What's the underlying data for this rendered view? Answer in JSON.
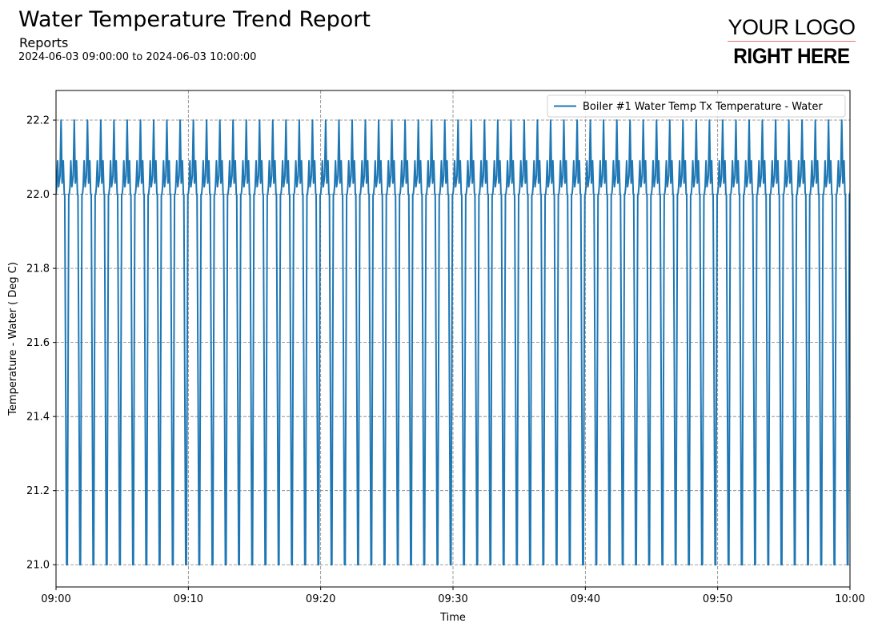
{
  "header": {
    "title": "Water Temperature Trend Report",
    "subtitle": "Reports",
    "date_range": "2024-06-03 09:00:00 to 2024-06-03 10:00:00"
  },
  "logo": {
    "line1": "YOUR LOGO",
    "line2": "RIGHT HERE"
  },
  "chart_data": {
    "type": "line",
    "title": "",
    "xlabel": "Time",
    "ylabel": "Temperature - Water ( Deg C)",
    "xlim": [
      "09:00",
      "10:00"
    ],
    "ylim": [
      20.94,
      22.28
    ],
    "x_ticks": [
      "09:00",
      "09:10",
      "09:20",
      "09:30",
      "09:40",
      "09:50",
      "10:00"
    ],
    "y_ticks": [
      "21.0",
      "21.2",
      "21.4",
      "21.6",
      "21.8",
      "22.0",
      "22.2"
    ],
    "grid": true,
    "legend": "top-right",
    "series": [
      {
        "name": "Boiler #1 Water Temp Tx Temperature - Water",
        "color": "#1f77b4",
        "cycle_minutes": 1,
        "cycle_shape_values": [
          22.0,
          22.02,
          22.09,
          22.02,
          22.05,
          22.2,
          22.03,
          22.09,
          22.0,
          22.0,
          21.0,
          21.0,
          22.0
        ],
        "cycle_phase_minutes": [
          0,
          0.05,
          0.12,
          0.2,
          0.3,
          0.38,
          0.46,
          0.55,
          0.62,
          0.66,
          0.8,
          0.85,
          0.96
        ]
      }
    ]
  }
}
